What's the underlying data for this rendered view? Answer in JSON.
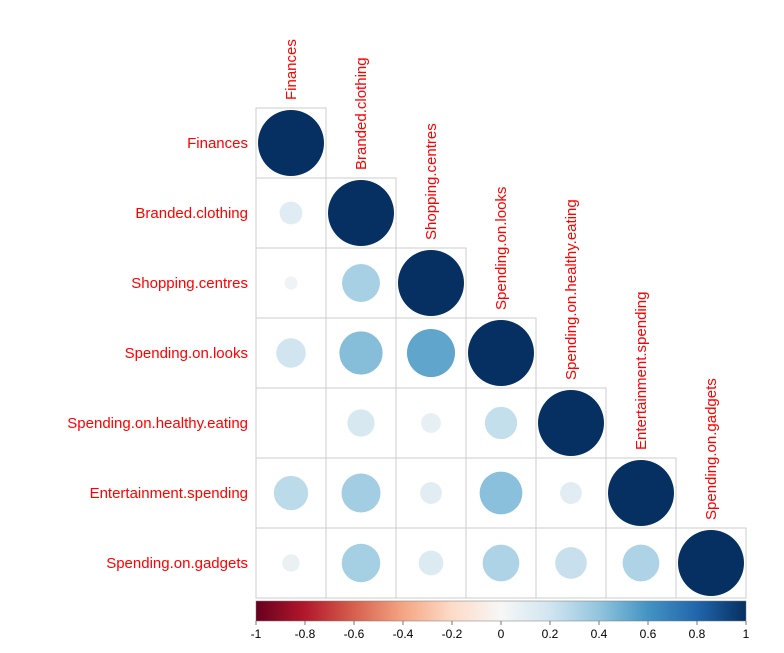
{
  "chart_data": {
    "type": "heatmap",
    "style": "lower-triangle correlation plot with circles",
    "variables": [
      "Finances",
      "Branded.clothing",
      "Shopping.centres",
      "Spending.on.looks",
      "Spending.on.healthy.eating",
      "Entertainment.spending",
      "Spending.on.gadgets"
    ],
    "matrix": [
      [
        1.0,
        null,
        null,
        null,
        null,
        null,
        null
      ],
      [
        0.12,
        1.0,
        null,
        null,
        null,
        null,
        null
      ],
      [
        0.04,
        0.33,
        1.0,
        null,
        null,
        null,
        null
      ],
      [
        0.2,
        0.43,
        0.53,
        1.0,
        null,
        null,
        null
      ],
      [
        0.0,
        0.17,
        0.09,
        0.24,
        1.0,
        null,
        null
      ],
      [
        0.27,
        0.35,
        0.11,
        0.42,
        0.11,
        1.0,
        null
      ],
      [
        0.07,
        0.34,
        0.14,
        0.31,
        0.23,
        0.31,
        1.0
      ]
    ],
    "colorbar": {
      "min": -1,
      "max": 1,
      "ticks": [
        "-1",
        "-0.8",
        "-0.6",
        "-0.4",
        "-0.2",
        "0",
        "0.2",
        "0.4",
        "0.6",
        "0.8",
        "1"
      ],
      "negative_color": "#67001F",
      "neutral_color": "#F7F7F7",
      "positive_color": "#053061"
    },
    "label_color": "#FF0000",
    "grid_color": "#CCCCCC"
  }
}
